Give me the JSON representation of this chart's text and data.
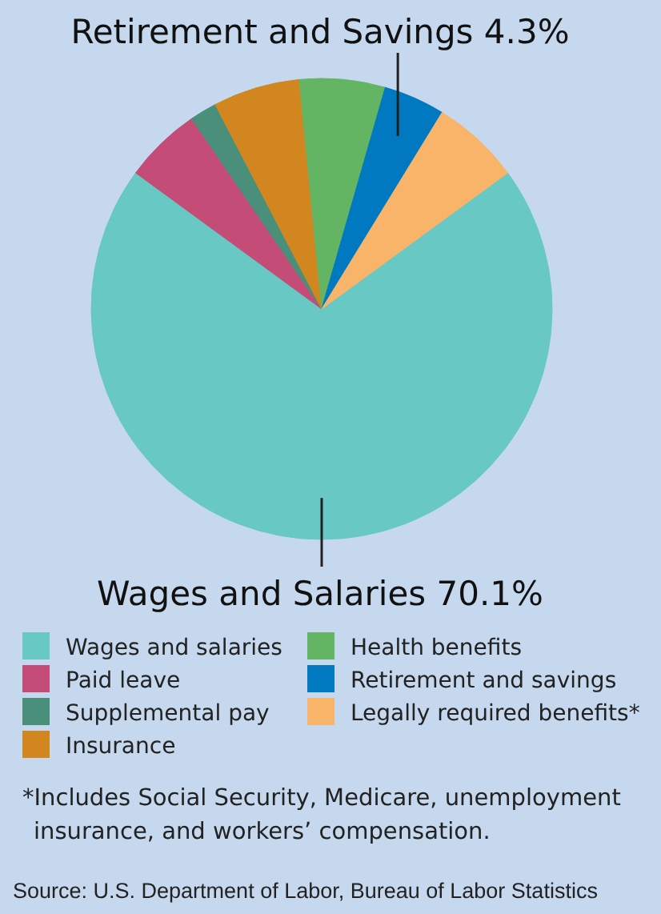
{
  "chart_data": {
    "type": "pie",
    "categories": [
      "Wages and salaries",
      "Paid leave",
      "Supplemental pay",
      "Insurance",
      "Health benefits",
      "Retirement and savings",
      "Legally required benefits*"
    ],
    "values": [
      70.1,
      5.4,
      1.9,
      6.1,
      6.0,
      4.3,
      6.2
    ],
    "colors": [
      "#67c8c4",
      "#c44d78",
      "#4a8f7a",
      "#d28620",
      "#63b564",
      "#0079c1",
      "#f8b56a"
    ],
    "value_labels": [
      "Wages and Salaries 70.1%",
      null,
      null,
      null,
      null,
      "Retirement and Savings 4.3%",
      null
    ],
    "legend": "bottom",
    "annotations": [
      "*Includes Social Security, Medicare, unemployment insurance, and workers’ compensation.",
      "Source: U.S. Department of Labor, Bureau of Labor Statistics"
    ]
  }
}
